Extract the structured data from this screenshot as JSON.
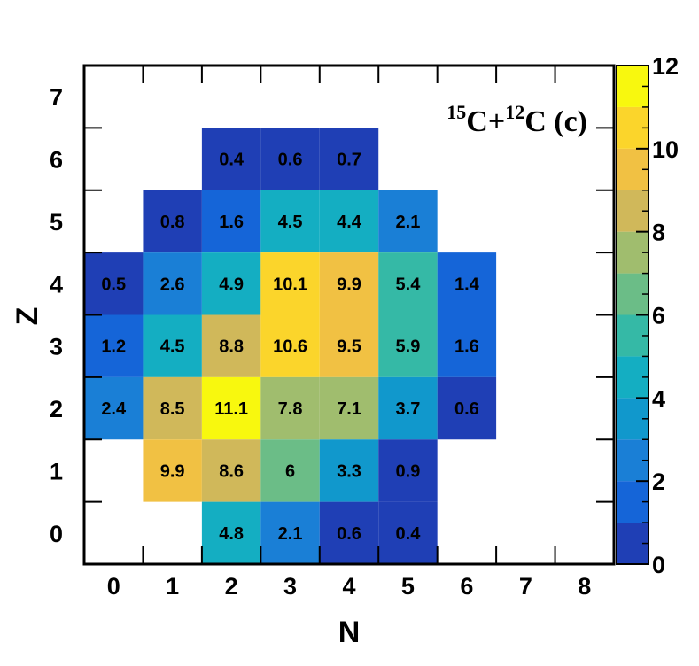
{
  "chart_data": {
    "type": "heatmap",
    "title_parts": {
      "mass1": "15",
      "elem1": "C",
      "plus": "+",
      "mass2": "12",
      "elem2": "C",
      "tag": " (c)"
    },
    "xlabel": "N",
    "ylabel": "Z",
    "xlim": [
      -0.5,
      8.5
    ],
    "ylim": [
      -0.5,
      7.5
    ],
    "x_ticks": [
      "0",
      "1",
      "2",
      "3",
      "4",
      "5",
      "6",
      "7",
      "8"
    ],
    "y_ticks": [
      "0",
      "1",
      "2",
      "3",
      "4",
      "5",
      "6",
      "7"
    ],
    "zlim": [
      0,
      12
    ],
    "colorbar_ticks": [
      "0",
      "2",
      "4",
      "6",
      "8",
      "10",
      "12"
    ],
    "cells": [
      {
        "n": 2,
        "z": 6,
        "value": 0.4,
        "label": "0.4"
      },
      {
        "n": 3,
        "z": 6,
        "value": 0.6,
        "label": "0.6"
      },
      {
        "n": 4,
        "z": 6,
        "value": 0.7,
        "label": "0.7"
      },
      {
        "n": 1,
        "z": 5,
        "value": 0.8,
        "label": "0.8"
      },
      {
        "n": 2,
        "z": 5,
        "value": 1.6,
        "label": "1.6"
      },
      {
        "n": 3,
        "z": 5,
        "value": 4.5,
        "label": "4.5"
      },
      {
        "n": 4,
        "z": 5,
        "value": 4.4,
        "label": "4.4"
      },
      {
        "n": 5,
        "z": 5,
        "value": 2.1,
        "label": "2.1"
      },
      {
        "n": 0,
        "z": 4,
        "value": 0.5,
        "label": "0.5"
      },
      {
        "n": 1,
        "z": 4,
        "value": 2.6,
        "label": "2.6"
      },
      {
        "n": 2,
        "z": 4,
        "value": 4.9,
        "label": "4.9"
      },
      {
        "n": 3,
        "z": 4,
        "value": 10.1,
        "label": "10.1"
      },
      {
        "n": 4,
        "z": 4,
        "value": 9.9,
        "label": "9.9"
      },
      {
        "n": 5,
        "z": 4,
        "value": 5.4,
        "label": "5.4"
      },
      {
        "n": 6,
        "z": 4,
        "value": 1.4,
        "label": "1.4"
      },
      {
        "n": 0,
        "z": 3,
        "value": 1.2,
        "label": "1.2"
      },
      {
        "n": 1,
        "z": 3,
        "value": 4.5,
        "label": "4.5"
      },
      {
        "n": 2,
        "z": 3,
        "value": 8.8,
        "label": "8.8"
      },
      {
        "n": 3,
        "z": 3,
        "value": 10.6,
        "label": "10.6"
      },
      {
        "n": 4,
        "z": 3,
        "value": 9.5,
        "label": "9.5"
      },
      {
        "n": 5,
        "z": 3,
        "value": 5.9,
        "label": "5.9"
      },
      {
        "n": 6,
        "z": 3,
        "value": 1.6,
        "label": "1.6"
      },
      {
        "n": 0,
        "z": 2,
        "value": 2.4,
        "label": "2.4"
      },
      {
        "n": 1,
        "z": 2,
        "value": 8.5,
        "label": "8.5"
      },
      {
        "n": 2,
        "z": 2,
        "value": 11.1,
        "label": "11.1"
      },
      {
        "n": 3,
        "z": 2,
        "value": 7.8,
        "label": "7.8"
      },
      {
        "n": 4,
        "z": 2,
        "value": 7.1,
        "label": "7.1"
      },
      {
        "n": 5,
        "z": 2,
        "value": 3.7,
        "label": "3.7"
      },
      {
        "n": 6,
        "z": 2,
        "value": 0.6,
        "label": "0.6"
      },
      {
        "n": 1,
        "z": 1,
        "value": 9.9,
        "label": "9.9"
      },
      {
        "n": 2,
        "z": 1,
        "value": 8.6,
        "label": "8.6"
      },
      {
        "n": 3,
        "z": 1,
        "value": 6,
        "label": "6"
      },
      {
        "n": 4,
        "z": 1,
        "value": 3.3,
        "label": "3.3"
      },
      {
        "n": 5,
        "z": 1,
        "value": 0.9,
        "label": "0.9"
      },
      {
        "n": 2,
        "z": 0,
        "value": 4.8,
        "label": "4.8"
      },
      {
        "n": 3,
        "z": 0,
        "value": 2.1,
        "label": "2.1"
      },
      {
        "n": 4,
        "z": 0,
        "value": 0.6,
        "label": "0.6"
      },
      {
        "n": 5,
        "z": 0,
        "value": 0.4,
        "label": "0.4"
      }
    ],
    "palette": [
      "#1f3fb5",
      "#1565d8",
      "#1a7fd6",
      "#1198cc",
      "#14aec2",
      "#35b9a6",
      "#6bbd87",
      "#a0bd6e",
      "#d0b85a",
      "#f1c143",
      "#fbd52b",
      "#f8f80e"
    ],
    "grid": false,
    "legend": "colorbar-right"
  }
}
